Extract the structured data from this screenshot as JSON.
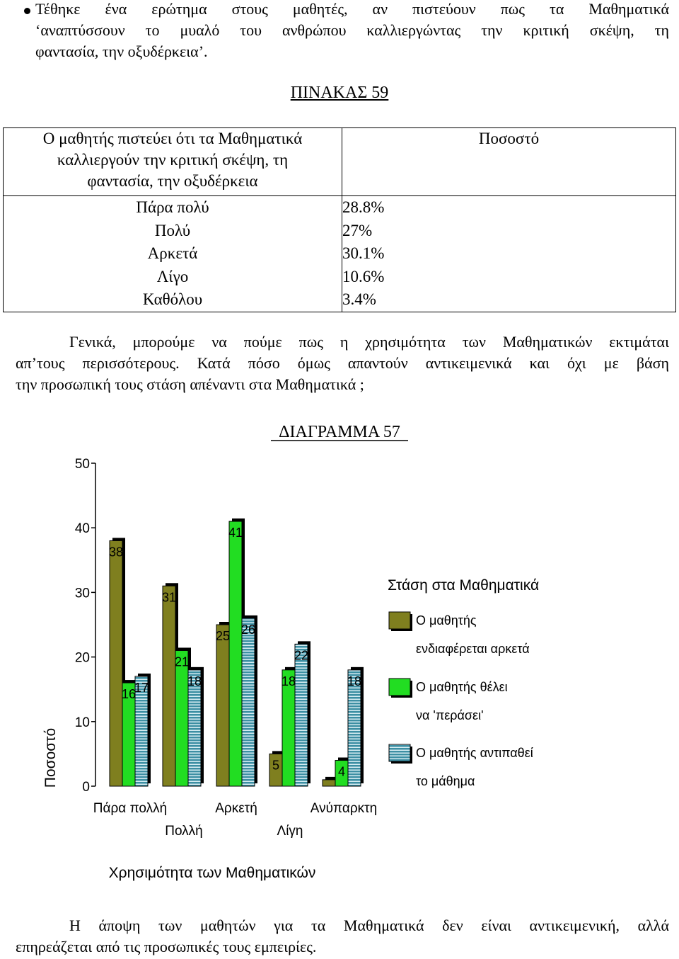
{
  "bullet": {
    "lines": [
      "Τέθηκε ένα ερώτημα στους μαθητές, αν πιστεύουν πως τα Μαθηματικά",
      "‘αναπτύσσουν το μυαλό του ανθρώπου καλλιεργώντας την κριτική σκέψη, τη",
      "φαντασία, την οξυδέρκεια’."
    ]
  },
  "table": {
    "title": "ΠΙΝΑΚΑΣ 59",
    "header_left": [
      "Ο μαθητής πιστεύει ότι τα Μαθηματικά",
      "καλλιεργούν την κριτική σκέψη, τη",
      "φαντασία, την οξυδέρκεια"
    ],
    "header_right": "Ποσοστό",
    "rows": [
      {
        "label": "Πάρα πολύ",
        "value": "28.8%"
      },
      {
        "label": "Πολύ",
        "value": "27%"
      },
      {
        "label": "Αρκετά",
        "value": "30.1%"
      },
      {
        "label": "Λίγο",
        "value": "10.6%"
      },
      {
        "label": "Καθόλου",
        "value": "3.4%"
      }
    ]
  },
  "paragraph": {
    "lines": [
      "Γενικά, μπορούμε να πούμε πως η χρησιμότητα των Μαθηματικών εκτιμάται",
      "απ’τους περισσότερους. Κατά πόσο όμως απαντούν αντικειμενικά και όχι με βάση",
      "την προσωπική τους στάση απέναντι στα Μαθηματικά ;"
    ]
  },
  "chart_data": {
    "type": "bar",
    "title": "ΔΙΑΓΡΑΜΜΑ 57",
    "xlabel": "Χρησιμότητα των Μαθηματικών",
    "ylabel": "Ποσοστό",
    "ylim": [
      0,
      50
    ],
    "yticks": [
      "0",
      "10",
      "20",
      "30",
      "40",
      "50"
    ],
    "categories": [
      "Πάρα πολλή",
      "Πολλή",
      "Αρκετή",
      "Λίγη",
      "Ανύπαρκτη"
    ],
    "legend_title": "Στάση στα Μαθηματικά",
    "legend_position": "right",
    "series": [
      {
        "name_lines": [
          "Ο μαθητής",
          "ενδιαφέρεται αρκετά"
        ],
        "color": "#7f7f1f",
        "values": [
          38,
          31,
          25,
          5,
          1
        ]
      },
      {
        "name_lines": [
          "Ο μαθητής θέλει",
          "να 'περάσει'"
        ],
        "color": "#22dd22",
        "values": [
          16,
          21,
          41,
          18,
          4
        ]
      },
      {
        "name_lines": [
          "Ο μαθητής αντιπαθεί",
          "το μάθημα"
        ],
        "color": "#3d8fa3",
        "values": [
          17,
          18,
          26,
          22,
          18
        ]
      }
    ],
    "data_labels": [
      [
        "38",
        "31",
        "25",
        "5",
        ""
      ],
      [
        "16",
        "21",
        "41",
        "18",
        "4"
      ],
      [
        "17",
        "18",
        "26",
        "22",
        "18"
      ]
    ]
  },
  "closing": {
    "lines": [
      "Η άποψη των μαθητών για τα Μαθηματικά δεν είναι αντικειμενική, αλλά",
      "επηρεάζεται από τις προσωπικές τους εμπειρίες."
    ]
  }
}
